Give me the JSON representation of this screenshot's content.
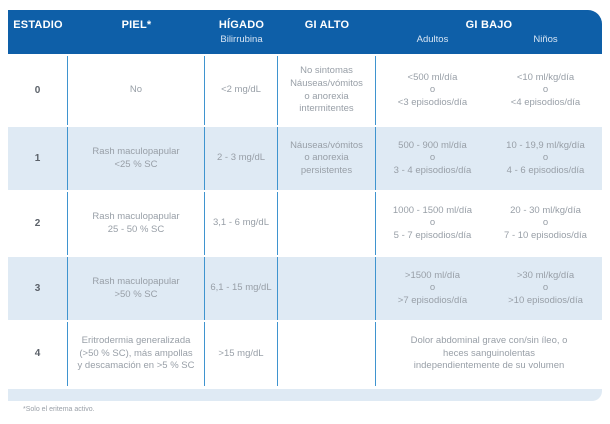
{
  "chart_data": {
    "type": "table",
    "header": {
      "estadio": "ESTADIO",
      "piel": "PIEL*",
      "higado": "HÍGADO",
      "higado_sub": "Bilirrubina",
      "gi_alto": "GI ALTO",
      "gi_bajo": "GI BAJO",
      "gi_bajo_sub_adultos": "Adultos",
      "gi_bajo_sub_ninos": "Niños"
    },
    "rows": [
      {
        "estadio": "0",
        "piel": "No",
        "higado": "<2 mg/dL",
        "gi_alto": "No sintomas\nNáuseas/vómitos\no anorexia\nintermitentes",
        "gi_bajo_adultos": "<500 ml/día\no\n<3 episodios/día",
        "gi_bajo_ninos": "<10 ml/kg/día\no\n<4 episodios/día"
      },
      {
        "estadio": "1",
        "piel": "Rash maculopapular\n<25 % SC",
        "higado": "2 - 3 mg/dL",
        "gi_alto": "Náuseas/vómitos\no anorexia\npersistentes",
        "gi_bajo_adultos": "500 - 900 ml/día\no\n3 - 4 episodios/día",
        "gi_bajo_ninos": "10 - 19,9 ml/kg/día\no\n4 - 6 episodios/día"
      },
      {
        "estadio": "2",
        "piel": "Rash maculopapular\n25 - 50 % SC",
        "higado": "3,1 - 6 mg/dL",
        "gi_alto": "",
        "gi_bajo_adultos": "1000 - 1500 ml/día\no\n5 - 7 episodios/día",
        "gi_bajo_ninos": "20 - 30 ml/kg/día\no\n7 - 10 episodios/día"
      },
      {
        "estadio": "3",
        "piel": "Rash maculopapular\n>50 % SC",
        "higado": "6,1 - 15 mg/dL",
        "gi_alto": "",
        "gi_bajo_adultos": ">1500 ml/día\no\n>7 episodios/día",
        "gi_bajo_ninos": ">30 ml/kg/día\no\n>10 episodios/día"
      },
      {
        "estadio": "4",
        "piel": "Eritrodermia generalizada\n(>50 % SC), más ampollas\ny descamación en >5 % SC",
        "higado": ">15 mg/dL",
        "gi_alto": "",
        "gi_bajo_merged": "Dolor abdominal grave con/sin íleo, o\nheces sanguinolentas\nindependientemente de su volumen"
      }
    ],
    "footnote": "*Solo el eritema activo.",
    "colors": {
      "header_bg": "#0e5fa8",
      "alt_row_bg": "#dfeaf4",
      "column_divider": "#3f94cf",
      "body_text": "#989fa7",
      "stage_text": "#5b6169"
    }
  }
}
